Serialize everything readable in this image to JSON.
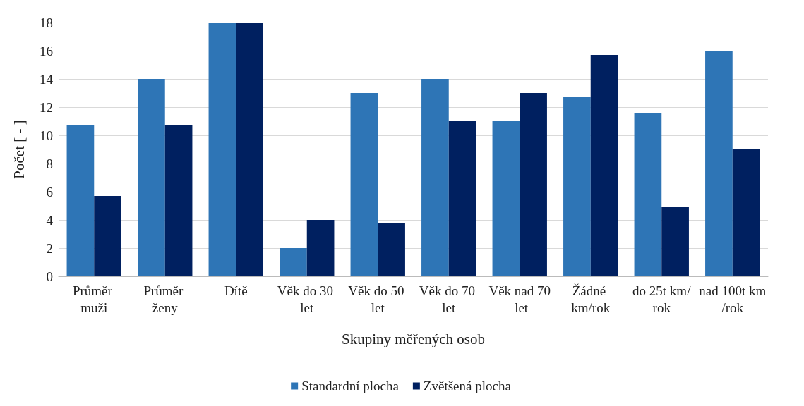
{
  "chart_data": {
    "type": "bar",
    "xlabel": "Skupiny měřených osob",
    "ylabel": "Počet [ - ]",
    "categories": [
      "Průměr muži",
      "Průměr ženy",
      "Dítě",
      "Věk do 30 let",
      "Věk do 50 let",
      "Věk do 70 let",
      "Věk nad 70 let",
      "Žádné km/rok",
      "do 25t km/rok",
      "nad 100t km/rok"
    ],
    "series": [
      {
        "name": "Standardní plocha",
        "color": "#2e75b6",
        "values": [
          10.7,
          14,
          18,
          2,
          13,
          14,
          11,
          12.7,
          11.6,
          16
        ]
      },
      {
        "name": "Zvětšená plocha",
        "color": "#002060",
        "values": [
          5.7,
          10.7,
          18,
          4,
          3.8,
          11,
          13,
          15.7,
          4.9,
          9
        ]
      }
    ],
    "ylim": [
      0,
      18
    ],
    "yticks": [
      0,
      2,
      4,
      6,
      8,
      10,
      12,
      14,
      16,
      18
    ],
    "grid": "y",
    "legend": "bottom"
  }
}
